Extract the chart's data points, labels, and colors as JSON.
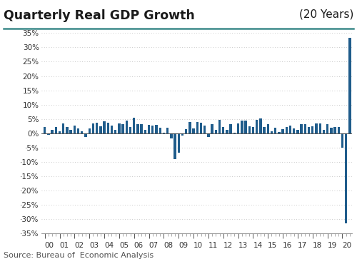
{
  "title_left": "Quarterly Real GDP Growth",
  "title_right": "(20 Years)",
  "subtitle": "Source: Bureau of  Economic Analysis",
  "bar_color": "#1F5C8B",
  "background_color": "#ffffff",
  "title_color": "#1a1a1a",
  "teal_line_color": "#3d8b8b",
  "ylim": [
    -35,
    35
  ],
  "yticks": [
    -35,
    -30,
    -25,
    -20,
    -15,
    -10,
    -5,
    0,
    5,
    10,
    15,
    20,
    25,
    30,
    35
  ],
  "ytick_labels": [
    "·35%",
    "·30%",
    "·25%",
    "·20%",
    "·15%",
    "·10%",
    "·5%",
    "0%",
    "5%",
    "10%",
    "15%",
    "20%",
    "25%",
    "30%",
    "35%"
  ],
  "year_labels": [
    "00",
    "01",
    "02",
    "03",
    "04",
    "05",
    "06",
    "07",
    "08",
    "09",
    "10",
    "11",
    "12",
    "13",
    "14",
    "15",
    "16",
    "17",
    "18",
    "19",
    "20"
  ],
  "values": [
    2.3,
    -0.5,
    1.2,
    2.1,
    0.6,
    3.5,
    2.1,
    1.1,
    2.7,
    1.8,
    0.6,
    -1.4,
    1.7,
    3.5,
    3.7,
    2.5,
    4.1,
    3.8,
    2.7,
    1.2,
    3.5,
    3.3,
    4.5,
    2.1,
    5.4,
    3.2,
    3.3,
    1.2,
    2.9,
    2.6,
    3.0,
    1.9,
    0.1,
    2.0,
    -1.9,
    -8.9,
    -6.7,
    -0.7,
    1.5,
    3.9,
    1.7,
    3.9,
    3.8,
    2.6,
    -1.3,
    3.2,
    1.3,
    4.6,
    2.3,
    1.3,
    3.1,
    0.1,
    3.5,
    4.5,
    4.5,
    2.5,
    2.3,
    4.6,
    5.2,
    2.1,
    3.2,
    0.6,
    2.0,
    0.5,
    1.5,
    2.2,
    2.8,
    1.8,
    1.2,
    3.1,
    3.2,
    2.3,
    2.5,
    3.5,
    3.4,
    1.1,
    3.1,
    2.0,
    2.1,
    2.1,
    -5.0,
    -31.4,
    33.4
  ]
}
